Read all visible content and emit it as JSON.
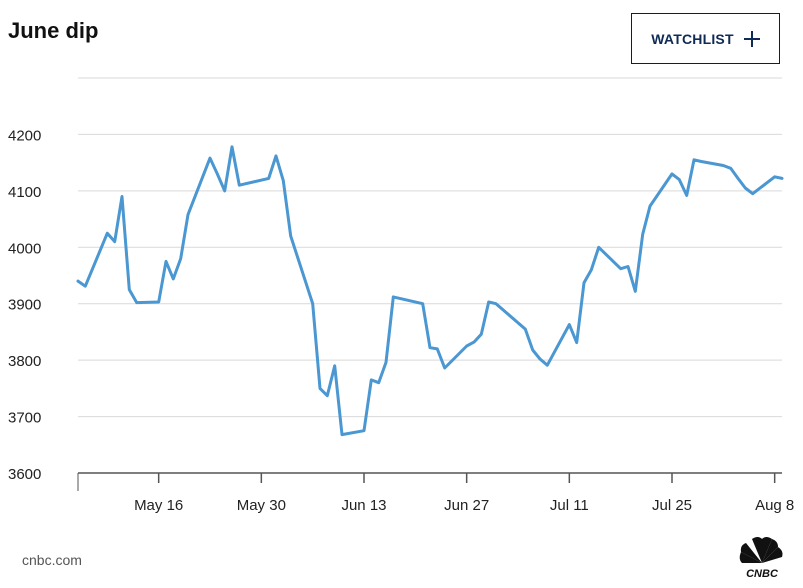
{
  "header": {
    "title": "June dip",
    "watchlist_label": "WATCHLIST",
    "watchlist_icon": "plus-icon"
  },
  "footer": {
    "source": "cnbc.com",
    "logo_text": "CNBC"
  },
  "colors": {
    "line": "#4a97d2",
    "grid": "#d9d9d9",
    "axis": "#555555",
    "button_text": "#0f2a56"
  },
  "chart_data": {
    "type": "line",
    "title": "June dip",
    "xlabel": "",
    "ylabel": "",
    "ylim": [
      3600,
      4300
    ],
    "yticks": [
      3600,
      3700,
      3800,
      3900,
      4000,
      4100,
      4200
    ],
    "ytick_labels": [
      "3600",
      "3700",
      "3800",
      "3900",
      "4000",
      "4100",
      "4200"
    ],
    "xlim": [
      "2022-05-05",
      "2022-08-09"
    ],
    "xtick_labels": [
      {
        "date": "2022-05-16",
        "label": "May 16"
      },
      {
        "date": "2022-05-30",
        "label": "May 30"
      },
      {
        "date": "2022-06-13",
        "label": "Jun 13"
      },
      {
        "date": "2022-06-27",
        "label": "Jun 27"
      },
      {
        "date": "2022-07-11",
        "label": "Jul 11"
      },
      {
        "date": "2022-07-25",
        "label": "Jul 25"
      },
      {
        "date": "2022-08-08",
        "label": "Aug 8"
      }
    ],
    "grid": true,
    "series": [
      {
        "x": [
          "2022-05-05",
          "2022-05-06",
          "2022-05-09",
          "2022-05-10",
          "2022-05-11",
          "2022-05-12",
          "2022-05-13",
          "2022-05-16",
          "2022-05-17",
          "2022-05-18",
          "2022-05-19",
          "2022-05-20",
          "2022-05-23",
          "2022-05-24",
          "2022-05-25",
          "2022-05-26",
          "2022-05-27",
          "2022-05-31",
          "2022-06-01",
          "2022-06-02",
          "2022-06-03",
          "2022-06-06",
          "2022-06-07",
          "2022-06-08",
          "2022-06-09",
          "2022-06-10",
          "2022-06-13",
          "2022-06-14",
          "2022-06-15",
          "2022-06-16",
          "2022-06-17",
          "2022-06-21",
          "2022-06-22",
          "2022-06-23",
          "2022-06-24",
          "2022-06-27",
          "2022-06-28",
          "2022-06-29",
          "2022-06-30",
          "2022-07-01",
          "2022-07-05",
          "2022-07-06",
          "2022-07-07",
          "2022-07-08",
          "2022-07-11",
          "2022-07-12",
          "2022-07-13",
          "2022-07-14",
          "2022-07-15",
          "2022-07-18",
          "2022-07-19",
          "2022-07-20",
          "2022-07-21",
          "2022-07-22",
          "2022-07-25",
          "2022-07-26",
          "2022-07-27",
          "2022-07-28",
          "2022-07-29",
          "2022-08-01",
          "2022-08-02",
          "2022-08-03",
          "2022-08-04",
          "2022-08-05",
          "2022-08-08",
          "2022-08-09"
        ],
        "y": [
          3940,
          3931,
          4025,
          4010,
          4090,
          3925,
          3902,
          3903,
          3975,
          3944,
          3980,
          4058,
          4158,
          4130,
          4100,
          4178,
          4110,
          4122,
          4162,
          4118,
          4020,
          3900,
          3750,
          3737,
          3790,
          3668,
          3675,
          3765,
          3760,
          3796,
          3912,
          3900,
          3822,
          3820,
          3786,
          3825,
          3832,
          3846,
          3903,
          3900,
          3855,
          3818,
          3802,
          3791,
          3863,
          3831,
          3937,
          3960,
          4000,
          3962,
          3966,
          3922,
          4023,
          4073,
          4130,
          4120,
          4092,
          4155,
          4152,
          4145,
          4140,
          4122,
          4105,
          4095,
          4125,
          4122
        ]
      }
    ]
  }
}
